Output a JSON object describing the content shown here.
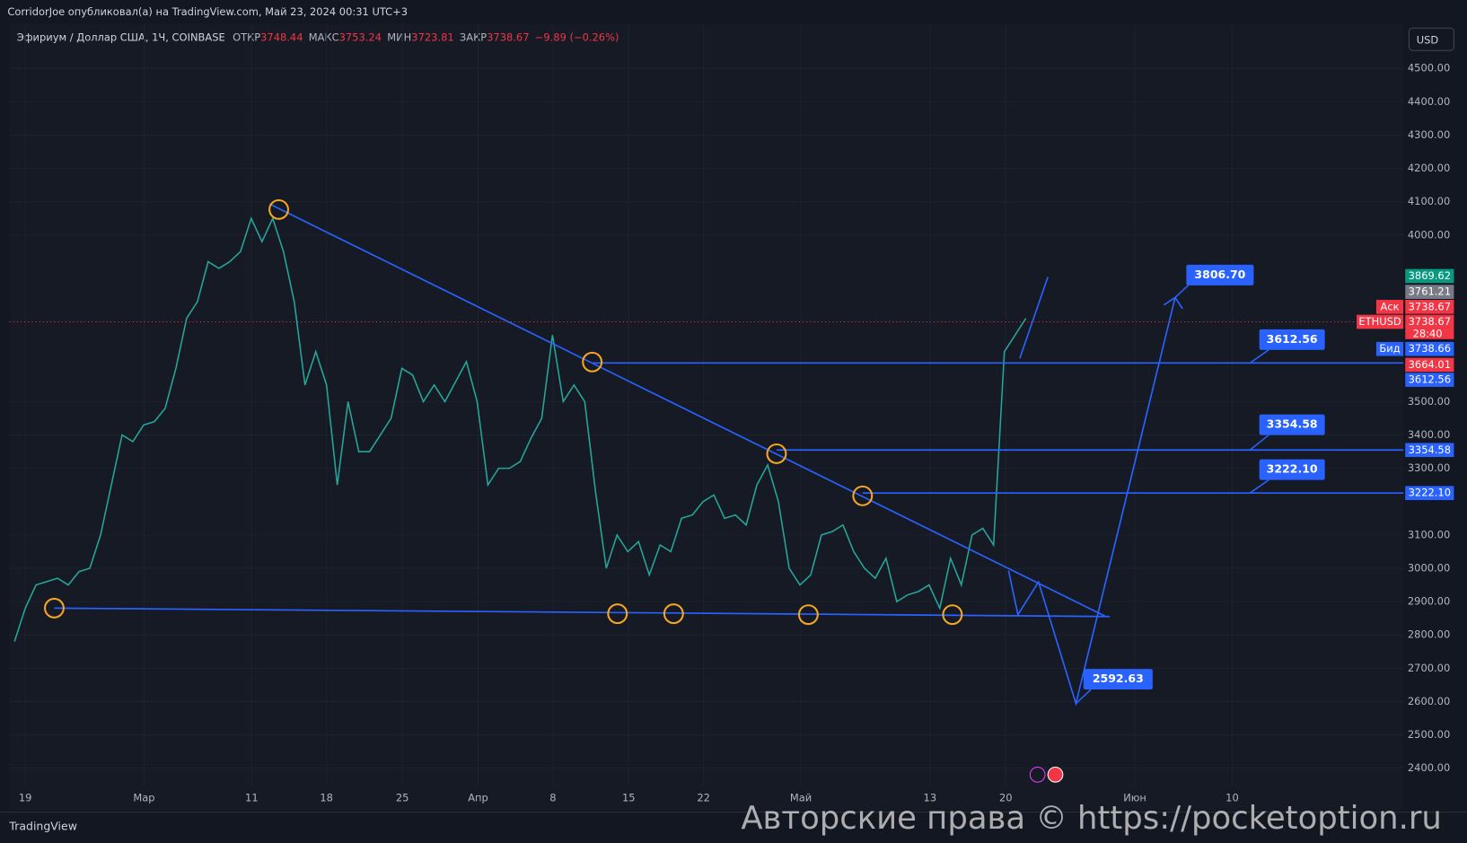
{
  "header": {
    "author_line": "CorridorJoe опубликовал(а) на TradingView.com, Май 23, 2024 00:31 UTC+3"
  },
  "legend": {
    "symbol": "Эфириум / Доллар США, 1Ч, COINBASE",
    "fields": [
      {
        "name": "ОТКР",
        "value": "3748.44"
      },
      {
        "name": "МАКС",
        "value": "3753.24"
      },
      {
        "name": "МИН",
        "value": "3723.81"
      },
      {
        "name": "ЗАКР",
        "value": "3738.67"
      }
    ],
    "change": "−9.89 (−0.26%)"
  },
  "currency_button": "USD",
  "chart_data": {
    "type": "line",
    "values": [
      2780,
      2880,
      2950,
      2960,
      2970,
      2950,
      2990,
      3000,
      3100,
      3250,
      3400,
      3380,
      3430,
      3440,
      3480,
      3600,
      3750,
      3800,
      3920,
      3900,
      3920,
      3950,
      4050,
      3980,
      4050,
      3950,
      3800,
      3550,
      3650,
      3550,
      3250,
      3500,
      3350,
      3350,
      3400,
      3450,
      3600,
      3580,
      3500,
      3550,
      3500,
      3560,
      3620,
      3500,
      3250,
      3300,
      3300,
      3320,
      3390,
      3450,
      3700,
      3500,
      3550,
      3500,
      3230,
      3000,
      3100,
      3050,
      3080,
      2980,
      3070,
      3050,
      3150,
      3160,
      3200,
      3220,
      3150,
      3160,
      3130,
      3250,
      3310,
      3200,
      3000,
      2950,
      2980,
      3100,
      3110,
      3130,
      3050,
      3000,
      2970,
      3030,
      2900,
      2920,
      2930,
      2950,
      2880,
      3030,
      2950,
      3100,
      3120,
      3070,
      3650,
      3700,
      3750
    ],
    "color": "#26a69a",
    "ylim": [
      2347,
      4565
    ],
    "yticks": [
      {
        "value": 2400,
        "label": "2400.00"
      },
      {
        "value": 2500,
        "label": "2500.00"
      },
      {
        "value": 2600,
        "label": "2600.00"
      },
      {
        "value": 2700,
        "label": "2700.00"
      },
      {
        "value": 2800,
        "label": "2800.00"
      },
      {
        "value": 2900,
        "label": "2900.00"
      },
      {
        "value": 3000,
        "label": "3000.00"
      },
      {
        "value": 3100,
        "label": "3100.00"
      },
      {
        "value": 3300,
        "label": "3300.00"
      },
      {
        "value": 3400,
        "label": "3400.00"
      },
      {
        "value": 3500,
        "label": "3500.00"
      },
      {
        "value": 4000,
        "label": "4000.00"
      },
      {
        "value": 4100,
        "label": "4100.00"
      },
      {
        "value": 4200,
        "label": "4200.00"
      },
      {
        "value": 4300,
        "label": "4300.00"
      },
      {
        "value": 4400,
        "label": "4400.00"
      },
      {
        "value": 4500,
        "label": "4500.00"
      }
    ],
    "x_labels": [
      "19",
      "Мар",
      "11",
      "18",
      "25",
      "Апр",
      "8",
      "15",
      "22",
      "Май",
      "13",
      "20",
      "Июн",
      "10"
    ],
    "targets": [
      {
        "value": 3806.7,
        "label": "3806.70"
      },
      {
        "value": 3612.56,
        "label": "3612.56"
      },
      {
        "value": 3354.58,
        "label": "3354.58"
      },
      {
        "value": 3222.1,
        "label": "3222.10"
      },
      {
        "value": 2592.63,
        "label": "2592.63"
      }
    ],
    "price_tags": [
      {
        "value": 3869.62,
        "label": "3869.62",
        "color": "#089981"
      },
      {
        "value": 3761.21,
        "label": "3761.21",
        "color": "#787b86"
      },
      {
        "value": 3738.67,
        "label": "3738.67",
        "color": "#f23645",
        "tag": "Аск"
      },
      {
        "value": 3738.67,
        "label": "3738.67",
        "color": "#f23645",
        "tag": "ETHUSD",
        "countdown": "28:40"
      },
      {
        "value": 3738.66,
        "label": "3738.66",
        "color": "#2962ff",
        "tag": "Бид"
      },
      {
        "value": 3664.01,
        "label": "3664.01",
        "color": "#f23645"
      },
      {
        "value": 3612.56,
        "label": "3612.56",
        "color": "#2962ff"
      },
      {
        "value": 3354.58,
        "label": "3354.58",
        "color": "#2962ff"
      },
      {
        "value": 3222.1,
        "label": "3222.10",
        "color": "#2962ff"
      }
    ]
  },
  "footer": {
    "brand": "TradingView",
    "watermark": "Авторские права © https://pocketoption.ru"
  }
}
